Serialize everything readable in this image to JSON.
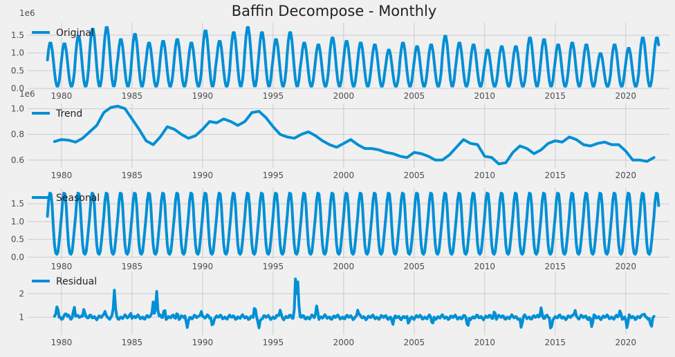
{
  "figure_title": "Baffin Decompose - Monthly",
  "colors": {
    "background": "#f0f0f0",
    "grid": "#cbcbcb",
    "line": "#008fd5",
    "text": "#222222"
  },
  "chart_data": [
    {
      "type": "line",
      "name": "Original",
      "offset_label": "1e6",
      "legend_placement": "top-left",
      "grid": true,
      "xlim": [
        1977.6,
        2023.1
      ],
      "ylim": [
        0.0,
        1.85
      ],
      "yticks": [
        "0.0",
        "0.5",
        "1.0",
        "1.5"
      ],
      "ytick_values": [
        0.0,
        0.5,
        1.0,
        1.5
      ],
      "xticks": [
        "1980",
        "1985",
        "1990",
        "1995",
        "2000",
        "2005",
        "2010",
        "2015",
        "2020"
      ],
      "xtick_values": [
        1980,
        1985,
        1990,
        1995,
        2000,
        2005,
        2010,
        2015,
        2020
      ],
      "x_range": [
        1979.0,
        2022.33
      ],
      "annual_min": 0.05,
      "annual_peaks": [
        1.3,
        1.28,
        1.5,
        1.7,
        1.75,
        1.4,
        1.55,
        1.3,
        1.35,
        1.4,
        1.3,
        1.65,
        1.35,
        1.6,
        1.75,
        1.6,
        1.4,
        1.6,
        1.3,
        1.25,
        1.45,
        1.35,
        1.3,
        1.25,
        1.1,
        1.3,
        1.2,
        1.25,
        1.5,
        1.3,
        1.25,
        1.1,
        1.2,
        1.2,
        1.45,
        1.4,
        1.25,
        1.3,
        1.25,
        1.0,
        1.25,
        1.15,
        1.45
      ]
    },
    {
      "type": "line",
      "name": "Trend",
      "offset_label": "1e6",
      "legend_placement": "top-left",
      "grid": true,
      "xlim": [
        1977.6,
        2023.1
      ],
      "ylim": [
        0.54,
        1.04
      ],
      "yticks": [
        "0.6",
        "0.8",
        "1.0"
      ],
      "ytick_values": [
        0.6,
        0.8,
        1.0
      ],
      "xticks": [
        "1980",
        "1985",
        "1990",
        "1995",
        "2000",
        "2005",
        "2010",
        "2015",
        "2020"
      ],
      "xtick_values": [
        1980,
        1985,
        1990,
        1995,
        2000,
        2005,
        2010,
        2015,
        2020
      ],
      "x": [
        1979.5,
        1980.0,
        1980.5,
        1981.0,
        1981.5,
        1982.0,
        1982.5,
        1983.0,
        1983.5,
        1984.0,
        1984.5,
        1985.0,
        1985.5,
        1986.0,
        1986.5,
        1987.0,
        1987.5,
        1988.0,
        1988.5,
        1989.0,
        1989.5,
        1990.0,
        1990.5,
        1991.0,
        1991.5,
        1992.0,
        1992.5,
        1993.0,
        1993.5,
        1994.0,
        1994.5,
        1995.0,
        1995.5,
        1996.0,
        1996.5,
        1997.0,
        1997.5,
        1998.0,
        1998.5,
        1999.0,
        1999.5,
        2000.0,
        2000.5,
        2001.0,
        2001.5,
        2002.0,
        2002.5,
        2003.0,
        2003.5,
        2004.0,
        2004.5,
        2005.0,
        2005.5,
        2006.0,
        2006.5,
        2007.0,
        2007.5,
        2008.0,
        2008.5,
        2009.0,
        2009.5,
        2010.0,
        2010.5,
        2011.0,
        2011.5,
        2012.0,
        2012.5,
        2013.0,
        2013.5,
        2014.0,
        2014.5,
        2015.0,
        2015.5,
        2016.0,
        2016.5,
        2017.0,
        2017.5,
        2018.0,
        2018.5,
        2019.0,
        2019.5,
        2020.0,
        2020.5,
        2021.0,
        2021.5,
        2022.0
      ],
      "y": [
        0.745,
        0.76,
        0.755,
        0.74,
        0.77,
        0.82,
        0.87,
        0.97,
        1.01,
        1.02,
        1.0,
        0.92,
        0.84,
        0.75,
        0.72,
        0.78,
        0.86,
        0.84,
        0.8,
        0.77,
        0.79,
        0.84,
        0.9,
        0.89,
        0.92,
        0.9,
        0.87,
        0.9,
        0.97,
        0.98,
        0.93,
        0.86,
        0.8,
        0.78,
        0.77,
        0.8,
        0.82,
        0.79,
        0.75,
        0.72,
        0.7,
        0.73,
        0.76,
        0.72,
        0.69,
        0.69,
        0.68,
        0.66,
        0.65,
        0.63,
        0.62,
        0.66,
        0.65,
        0.63,
        0.6,
        0.6,
        0.64,
        0.7,
        0.76,
        0.73,
        0.72,
        0.63,
        0.62,
        0.57,
        0.58,
        0.66,
        0.71,
        0.69,
        0.65,
        0.68,
        0.73,
        0.75,
        0.74,
        0.78,
        0.76,
        0.72,
        0.71,
        0.73,
        0.74,
        0.72,
        0.72,
        0.67,
        0.6,
        0.6,
        0.59,
        0.62
      ]
    },
    {
      "type": "line",
      "name": "Seasonal",
      "offset_label": "",
      "legend_placement": "top-left",
      "grid": true,
      "xlim": [
        1977.6,
        2023.1
      ],
      "ylim": [
        -0.05,
        1.95
      ],
      "yticks": [
        "0.0",
        "0.5",
        "1.0",
        "1.5"
      ],
      "ytick_values": [
        0.0,
        0.5,
        1.0,
        1.5
      ],
      "xticks": [
        "1980",
        "1985",
        "1990",
        "1995",
        "2000",
        "2005",
        "2010",
        "2015",
        "2020"
      ],
      "xtick_values": [
        1980,
        1985,
        1990,
        1995,
        2000,
        2005,
        2010,
        2015,
        2020
      ],
      "x_range": [
        1979.0,
        2022.33
      ],
      "monthly_pattern": [
        1.15,
        1.6,
        1.8,
        1.78,
        1.45,
        0.85,
        0.35,
        0.12,
        0.08,
        0.15,
        0.45,
        0.8
      ]
    },
    {
      "type": "line",
      "name": "Residual",
      "offset_label": "",
      "legend_placement": "top-left",
      "grid": true,
      "xlim": [
        1977.6,
        2023.1
      ],
      "ylim": [
        0.25,
        2.95
      ],
      "yticks": [
        "1",
        "2"
      ],
      "ytick_values": [
        1,
        2
      ],
      "xticks": [
        "1980",
        "1985",
        "1990",
        "1995",
        "2000",
        "2005",
        "2010",
        "2015",
        "2020"
      ],
      "xtick_values": [
        1980,
        1985,
        1990,
        1995,
        2000,
        2005,
        2010,
        2015,
        2020
      ],
      "x_range": [
        1979.5,
        2022.0
      ],
      "baseline": 1.0,
      "spikes": [
        {
          "x": 1979.7,
          "y": 1.6
        },
        {
          "x": 1980.3,
          "y": 1.2
        },
        {
          "x": 1980.9,
          "y": 1.5
        },
        {
          "x": 1981.6,
          "y": 1.4
        },
        {
          "x": 1983.1,
          "y": 1.3
        },
        {
          "x": 1983.75,
          "y": 2.15
        },
        {
          "x": 1984.9,
          "y": 1.2
        },
        {
          "x": 1986.5,
          "y": 1.65
        },
        {
          "x": 1986.75,
          "y": 2.1
        },
        {
          "x": 1987.3,
          "y": 1.4
        },
        {
          "x": 1988.2,
          "y": 1.2
        },
        {
          "x": 1988.9,
          "y": 0.5
        },
        {
          "x": 1989.9,
          "y": 1.3
        },
        {
          "x": 1990.7,
          "y": 0.55
        },
        {
          "x": 1993.7,
          "y": 1.5
        },
        {
          "x": 1994.0,
          "y": 0.55
        },
        {
          "x": 1995.5,
          "y": 1.3
        },
        {
          "x": 1996.6,
          "y": 2.9
        },
        {
          "x": 1996.75,
          "y": 2.5
        },
        {
          "x": 1998.1,
          "y": 1.55
        },
        {
          "x": 2001.0,
          "y": 1.3
        },
        {
          "x": 2003.5,
          "y": 0.7
        },
        {
          "x": 2004.6,
          "y": 0.7
        },
        {
          "x": 2006.3,
          "y": 0.65
        },
        {
          "x": 2008.8,
          "y": 0.5
        },
        {
          "x": 2010.7,
          "y": 1.3
        },
        {
          "x": 2012.6,
          "y": 0.5
        },
        {
          "x": 2014.0,
          "y": 1.4
        },
        {
          "x": 2014.7,
          "y": 0.35
        },
        {
          "x": 2016.4,
          "y": 1.35
        },
        {
          "x": 2017.6,
          "y": 0.55
        },
        {
          "x": 2019.6,
          "y": 1.3
        },
        {
          "x": 2020.1,
          "y": 0.5
        },
        {
          "x": 2021.3,
          "y": 1.2
        },
        {
          "x": 2021.8,
          "y": 0.45
        }
      ]
    }
  ]
}
